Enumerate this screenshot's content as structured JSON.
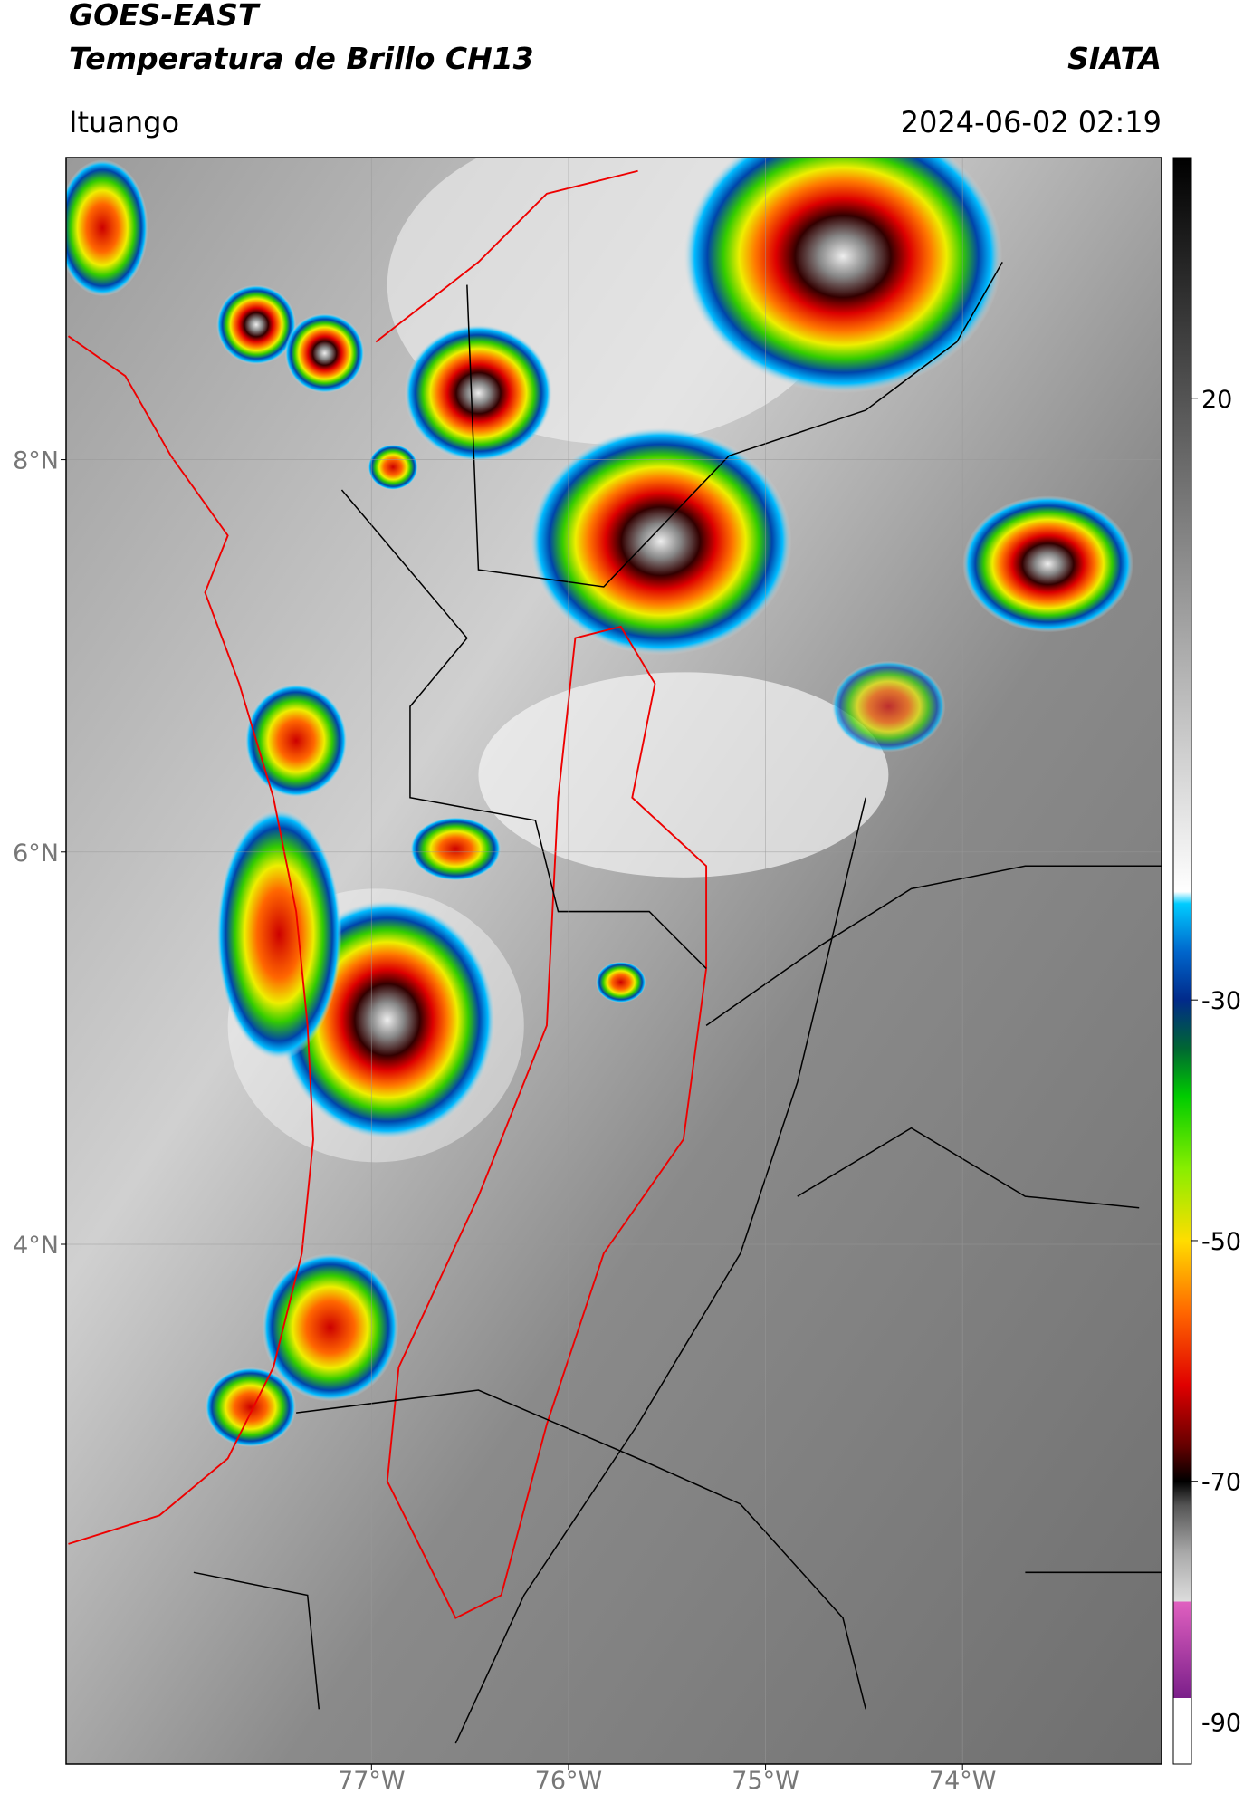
{
  "header": {
    "title": "GOES-EAST",
    "subtitle": "Temperatura de Brillo CH13",
    "source": "SIATA",
    "location": "Ituango",
    "datetime": "2024-06-02 02:19"
  },
  "chart_data": {
    "type": "map",
    "xlim": [
      -78.55,
      -72.99
    ],
    "ylim": [
      1.35,
      9.54
    ],
    "xticks": [
      {
        "value": -77,
        "label": "77°W"
      },
      {
        "value": -76,
        "label": "76°W"
      },
      {
        "value": -75,
        "label": "75°W"
      },
      {
        "value": -74,
        "label": "74°W"
      }
    ],
    "yticks": [
      {
        "value": 8,
        "label": "8°N"
      },
      {
        "value": 6,
        "label": "6°N"
      },
      {
        "value": 4,
        "label": "4°N"
      }
    ],
    "grid": true,
    "colorbar": {
      "lim": [
        -93.5,
        40
      ],
      "ticks": [
        20,
        -30,
        -50,
        -70,
        -90
      ],
      "stops": [
        {
          "value": -93.5,
          "color": "#ffffff"
        },
        {
          "value": -88,
          "color": "#ffffff"
        },
        {
          "value": -88,
          "color": "#7b1f8a"
        },
        {
          "value": -80,
          "color": "#e060c0"
        },
        {
          "value": -80,
          "color": "#dddddd"
        },
        {
          "value": -76,
          "color": "#aaaaaa"
        },
        {
          "value": -72,
          "color": "#555555"
        },
        {
          "value": -70,
          "color": "#000000"
        },
        {
          "value": -67,
          "color": "#660000"
        },
        {
          "value": -62,
          "color": "#e00000"
        },
        {
          "value": -56,
          "color": "#ff6600"
        },
        {
          "value": -50,
          "color": "#ffdd00"
        },
        {
          "value": -44,
          "color": "#88ee00"
        },
        {
          "value": -38,
          "color": "#00cc00"
        },
        {
          "value": -34,
          "color": "#006633"
        },
        {
          "value": -30,
          "color": "#012a8a"
        },
        {
          "value": -26,
          "color": "#0066cc"
        },
        {
          "value": -22,
          "color": "#00ccff"
        },
        {
          "value": -21,
          "color": "#ffffff"
        },
        {
          "value": 40,
          "color": "#000000"
        }
      ]
    }
  }
}
